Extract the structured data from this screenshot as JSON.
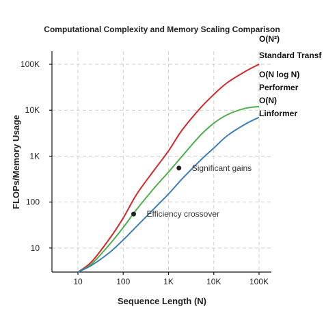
{
  "chart_data": {
    "type": "line",
    "title": "Computational Complexity and Memory Scaling Comparison",
    "xlabel": "Sequence Length (N)",
    "ylabel": "FLOPs/Memory Usage",
    "x_scale": "log",
    "y_scale": "log",
    "xlim": [
      10,
      100000
    ],
    "ylim": [
      3,
      100000
    ],
    "x_ticks": [
      {
        "value": 10,
        "label": "10"
      },
      {
        "value": 100,
        "label": "100"
      },
      {
        "value": 1000,
        "label": "1K"
      },
      {
        "value": 10000,
        "label": "10K"
      },
      {
        "value": 100000,
        "label": "100K"
      }
    ],
    "y_ticks": [
      {
        "value": 10,
        "label": "10"
      },
      {
        "value": 100,
        "label": "100"
      },
      {
        "value": 1000,
        "label": "1K"
      },
      {
        "value": 10000,
        "label": "10K"
      },
      {
        "value": 100000,
        "label": "100K"
      }
    ],
    "grid": true,
    "series": [
      {
        "complexity": "O(N²)",
        "name": "Standard Transf",
        "color": "#d62728",
        "x": [
          10,
          20,
          50,
          100,
          200,
          500,
          1000,
          2000,
          5000,
          10000,
          20000,
          50000,
          100000
        ],
        "y": [
          3,
          5,
          16,
          45,
          150,
          520,
          1300,
          3700,
          11000,
          22000,
          40000,
          70000,
          100000
        ]
      },
      {
        "complexity": "O(N log N)",
        "name": "Performer",
        "color": "#4daf4a",
        "x": [
          10,
          20,
          50,
          100,
          200,
          500,
          1000,
          2000,
          5000,
          10000,
          20000,
          50000,
          100000
        ],
        "y": [
          3,
          4.5,
          12,
          28,
          70,
          210,
          450,
          1000,
          2800,
          5200,
          8000,
          11000,
          12000
        ]
      },
      {
        "complexity": "O(N)",
        "name": "Linformer",
        "color": "#3a7dbb",
        "x": [
          10,
          20,
          50,
          100,
          200,
          500,
          1000,
          2000,
          5000,
          10000,
          20000,
          50000,
          100000
        ],
        "y": [
          3,
          4.2,
          8,
          15,
          30,
          75,
          150,
          320,
          800,
          1500,
          2800,
          5000,
          7000
        ]
      }
    ],
    "annotations": [
      {
        "text": "Efficiency crossover",
        "x": 170,
        "y": 55
      },
      {
        "text": "Significant gains",
        "x": 1700,
        "y": 550
      }
    ]
  }
}
